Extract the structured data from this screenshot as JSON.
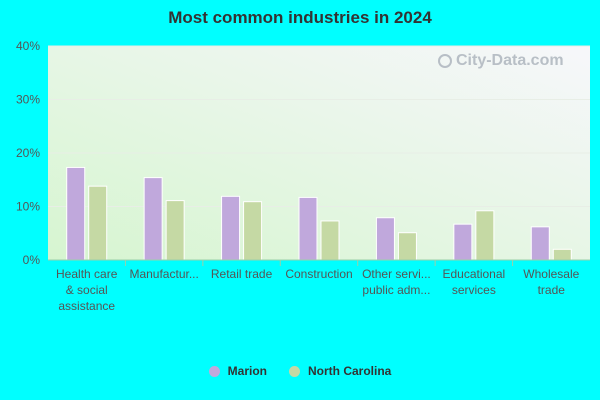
{
  "chart_data": {
    "type": "bar",
    "title": "Most common industries in 2024",
    "categories": [
      [
        "Health care",
        "& social",
        "assistance"
      ],
      [
        "Manufactur..."
      ],
      [
        "Retail trade"
      ],
      [
        "Construction"
      ],
      [
        "Other servi...",
        "public adm..."
      ],
      [
        "Educational",
        "services"
      ],
      [
        "Wholesale",
        "trade"
      ]
    ],
    "series": [
      {
        "name": "Marion",
        "color": "#c0a8dc",
        "values": [
          17.3,
          15.4,
          11.9,
          11.7,
          7.9,
          6.7,
          6.2
        ]
      },
      {
        "name": "North Carolina",
        "color": "#c5d9a4",
        "values": [
          13.8,
          11.1,
          10.9,
          7.3,
          5.1,
          9.2,
          2.0
        ]
      }
    ],
    "ylim": [
      0,
      40
    ],
    "yticks": [
      0,
      10,
      20,
      30,
      40
    ],
    "ytick_labels": [
      "0%",
      "10%",
      "20%",
      "30%",
      "40%"
    ],
    "grid": true,
    "legend_position": "bottom-center"
  },
  "watermark_text": "City-Data.com"
}
